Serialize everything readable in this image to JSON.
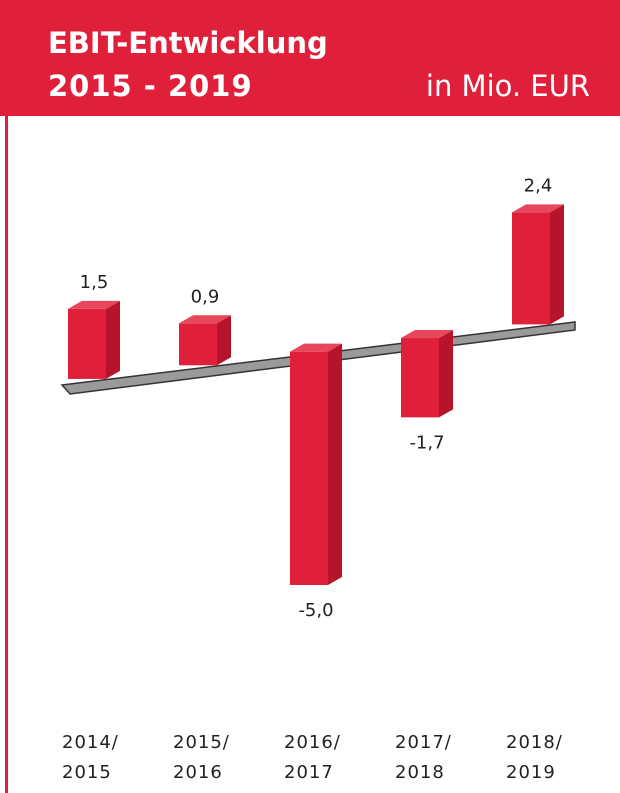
{
  "chart_data": {
    "type": "bar3d",
    "title": [
      "EBIT-Entwicklung",
      "2015 - 2019"
    ],
    "subtitle": "in Mio.  EUR",
    "categories": [
      [
        "2014/",
        "2015"
      ],
      [
        "2015/",
        "2016"
      ],
      [
        "2016/",
        "2017"
      ],
      [
        "2017/",
        "2018"
      ],
      [
        "2018/",
        "2019"
      ]
    ],
    "values": [
      1.5,
      0.9,
      -5.0,
      -1.7,
      2.4
    ],
    "value_labels": [
      "1,5",
      "0,9",
      "-5,0",
      "-1,7",
      "2,4"
    ],
    "color": "#e0203a",
    "ylim": [
      -6,
      3
    ]
  }
}
